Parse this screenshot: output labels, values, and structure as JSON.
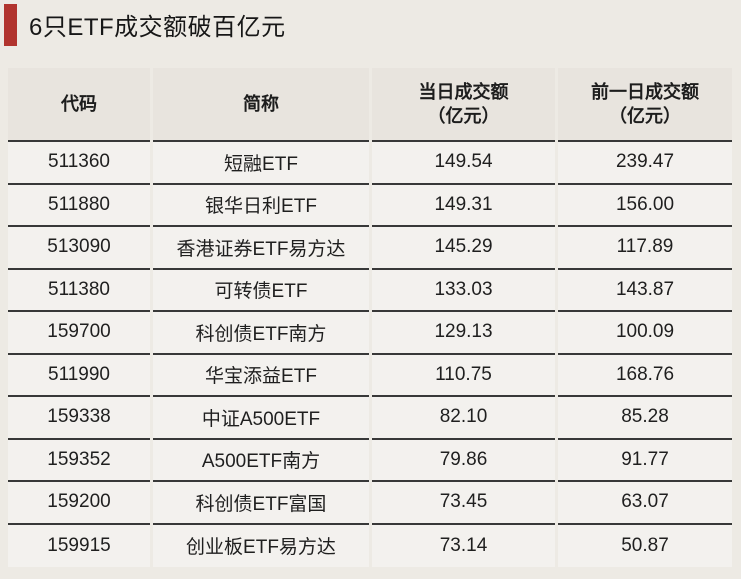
{
  "title": "6只ETF成交额破百亿元",
  "colors": {
    "page_bg": "#edeae4",
    "accent_red": "#b1342e",
    "header_bg": "#e8e4de",
    "row_bg": "#f3f1ee",
    "divider_dark": "#383838"
  },
  "table": {
    "headers": [
      {
        "line1": "代码",
        "line2": ""
      },
      {
        "line1": "简称",
        "line2": ""
      },
      {
        "line1": "当日成交额",
        "line2": "（亿元）"
      },
      {
        "line1": "前一日成交额",
        "line2": "（亿元）"
      }
    ],
    "rows": [
      {
        "code": "511360",
        "name": "短融ETF",
        "today": "149.54",
        "prev": "239.47"
      },
      {
        "code": "511880",
        "name": "银华日利ETF",
        "today": "149.31",
        "prev": "156.00"
      },
      {
        "code": "513090",
        "name": "香港证券ETF易方达",
        "today": "145.29",
        "prev": "117.89"
      },
      {
        "code": "511380",
        "name": "可转债ETF",
        "today": "133.03",
        "prev": "143.87"
      },
      {
        "code": "159700",
        "name": "科创债ETF南方",
        "today": "129.13",
        "prev": "100.09"
      },
      {
        "code": "511990",
        "name": "华宝添益ETF",
        "today": "110.75",
        "prev": "168.76"
      },
      {
        "code": "159338",
        "name": "中证A500ETF",
        "today": "82.10",
        "prev": "85.28"
      },
      {
        "code": "159352",
        "name": "A500ETF南方",
        "today": "79.86",
        "prev": "91.77"
      },
      {
        "code": "159200",
        "name": "科创债ETF富国",
        "today": "73.45",
        "prev": "63.07"
      },
      {
        "code": "159915",
        "name": "创业板ETF易方达",
        "today": "73.14",
        "prev": "50.87"
      }
    ]
  },
  "chart_data": {
    "type": "table",
    "title": "6只ETF成交额破百亿元",
    "columns": [
      "代码",
      "简称",
      "当日成交额（亿元）",
      "前一日成交额（亿元）"
    ],
    "rows": [
      [
        "511360",
        "短融ETF",
        149.54,
        239.47
      ],
      [
        "511880",
        "银华日利ETF",
        149.31,
        156.0
      ],
      [
        "513090",
        "香港证券ETF易方达",
        145.29,
        117.89
      ],
      [
        "511380",
        "可转债ETF",
        133.03,
        143.87
      ],
      [
        "159700",
        "科创债ETF南方",
        129.13,
        100.09
      ],
      [
        "511990",
        "华宝添益ETF",
        110.75,
        168.76
      ],
      [
        "159338",
        "中证A500ETF",
        82.1,
        85.28
      ],
      [
        "159352",
        "A500ETF南方",
        79.86,
        91.77
      ],
      [
        "159200",
        "科创债ETF富国",
        73.45,
        63.07
      ],
      [
        "159915",
        "创业板ETF易方达",
        73.14,
        50.87
      ]
    ]
  }
}
